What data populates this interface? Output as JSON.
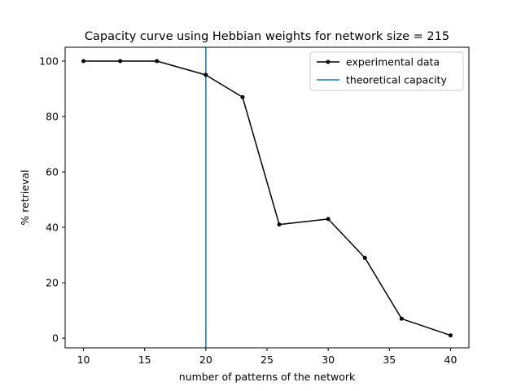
{
  "chart_data": {
    "type": "line",
    "title": "Capacity curve using Hebbian weights for network size = 215",
    "xlabel": "number of patterns of the network",
    "ylabel": "% retrieval",
    "xlim": [
      8.5,
      41.5
    ],
    "ylim": [
      -3.5,
      105
    ],
    "xticks": [
      10,
      15,
      20,
      25,
      30,
      35,
      40
    ],
    "yticks": [
      0,
      20,
      40,
      60,
      80,
      100
    ],
    "grid": false,
    "legend_position": "top-right",
    "series": [
      {
        "name": "experimental data",
        "color": "#000000",
        "marker": "dot",
        "x": [
          10,
          13,
          16,
          20,
          23,
          26,
          30,
          33,
          36,
          40
        ],
        "y": [
          100,
          100,
          100,
          95,
          87,
          41,
          43,
          29,
          7,
          1
        ]
      }
    ],
    "vlines": [
      {
        "name": "theoretical capacity",
        "color": "#1f77b4",
        "x": 20
      }
    ]
  }
}
